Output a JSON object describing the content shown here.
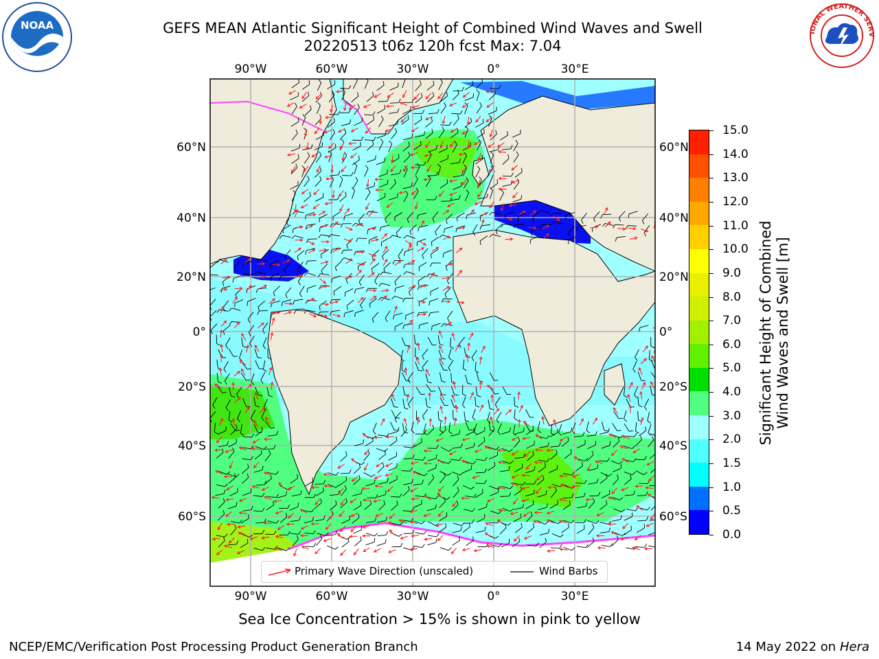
{
  "header": {
    "title_line1": "GEFS MEAN Atlantic Significant Height of Combined Wind Waves and Swell",
    "title_line2": "20220513 t06z 120h fcst   Max: 7.04"
  },
  "logos": {
    "noaa_text": "NOAA",
    "nws_text": "NATIONAL WEATHER SERVICE"
  },
  "map": {
    "lon_labels": [
      "90°W",
      "60°W",
      "30°W",
      "0°",
      "30°E"
    ],
    "lat_labels": [
      "60°N",
      "40°N",
      "20°N",
      "0°",
      "20°S",
      "40°S",
      "60°S"
    ],
    "colors": {
      "land": "#efecdc",
      "ice": "#ffffff",
      "barb": "#000000",
      "wave_arrow": "#ff2020",
      "grid": "#b0b0b0"
    }
  },
  "colorbar": {
    "label_line1": "Significant Height of Combined",
    "label_line2": "Wind Waves and Swell [m]",
    "ticks": [
      "0.0",
      "0.5",
      "1.0",
      "1.5",
      "2.0",
      "3.0",
      "4.0",
      "5.0",
      "6.0",
      "7.0",
      "8.0",
      "9.0",
      "10.0",
      "11.0",
      "12.0",
      "13.0",
      "14.0",
      "15.0"
    ],
    "colors": [
      "#0000ff",
      "#0070ff",
      "#00ffff",
      "#50ffff",
      "#a0ffff",
      "#50ff80",
      "#00e000",
      "#60f000",
      "#a0f000",
      "#d0f000",
      "#e8f000",
      "#ffff00",
      "#ffd000",
      "#ffa800",
      "#ff8000",
      "#ff5000",
      "#ff2000"
    ]
  },
  "legend": {
    "wave_label": "Primary Wave Direction (unscaled)",
    "barb_label": "Wind Barbs"
  },
  "footer": {
    "note": "Sea Ice Concentration > 15% is shown in pink to yellow",
    "left": "NCEP/EMC/Verification Post Processing Product Generation Branch",
    "date": "14 May 2022 on",
    "host": "Hera"
  }
}
